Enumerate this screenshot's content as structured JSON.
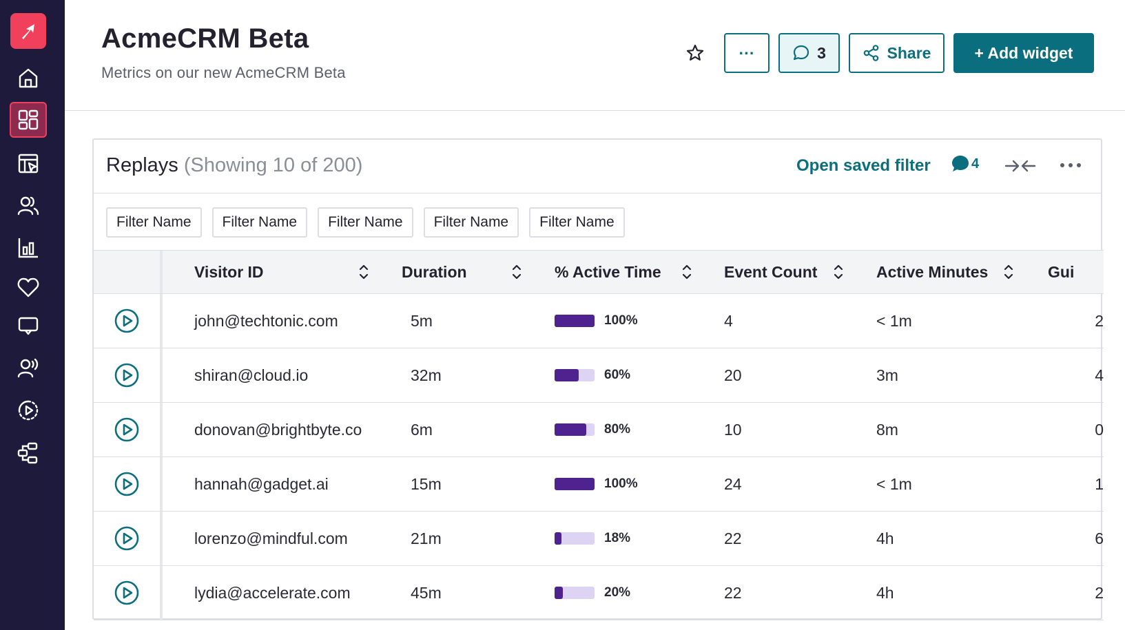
{
  "header": {
    "title": "AcmeCRM Beta",
    "subtitle": "Metrics on our new AcmeCRM Beta",
    "more_label": "···",
    "comment_count": "3",
    "share_label": "Share",
    "add_widget_label": "+ Add widget"
  },
  "sidebar": {
    "items": [
      {
        "icon": "home-icon"
      },
      {
        "icon": "dashboard-icon",
        "active": true
      },
      {
        "icon": "guides-icon"
      },
      {
        "icon": "people-icon"
      },
      {
        "icon": "analytics-icon"
      },
      {
        "icon": "heart-icon"
      },
      {
        "icon": "feedback-icon"
      },
      {
        "icon": "listen-icon"
      },
      {
        "icon": "replay-icon"
      },
      {
        "icon": "integrations-icon"
      }
    ]
  },
  "widget": {
    "title": "Replays",
    "count_text": "(Showing 10 of 200)",
    "open_saved_filter": "Open saved filter",
    "comment_count": "4",
    "filters": [
      "Filter Name",
      "Filter Name",
      "Filter Name",
      "Filter Name",
      "Filter Name"
    ],
    "columns": [
      "Visitor ID",
      "Duration",
      "% Active Time",
      "Event Count",
      "Active Minutes",
      "Gui"
    ],
    "rows": [
      {
        "visitor": "john@techtonic.com",
        "duration": "5m",
        "active_pct": 100,
        "active_label": "100%",
        "events": "4",
        "active_minutes": "< 1m",
        "guides": "2"
      },
      {
        "visitor": "shiran@cloud.io",
        "duration": "32m",
        "active_pct": 60,
        "active_label": "60%",
        "events": "20",
        "active_minutes": "3m",
        "guides": "4"
      },
      {
        "visitor": "donovan@brightbyte.co",
        "duration": "6m",
        "active_pct": 80,
        "active_label": "80%",
        "events": "10",
        "active_minutes": "8m",
        "guides": "0"
      },
      {
        "visitor": "hannah@gadget.ai",
        "duration": "15m",
        "active_pct": 100,
        "active_label": "100%",
        "events": "24",
        "active_minutes": "< 1m",
        "guides": "1"
      },
      {
        "visitor": "lorenzo@mindful.com",
        "duration": "21m",
        "active_pct": 18,
        "active_label": "18%",
        "events": "22",
        "active_minutes": "4h",
        "guides": "6"
      },
      {
        "visitor": "lydia@accelerate.com",
        "duration": "45m",
        "active_pct": 20,
        "active_label": "20%",
        "events": "22",
        "active_minutes": "4h",
        "guides": "2"
      }
    ]
  },
  "colors": {
    "sidebar_bg": "#1e1a3c",
    "brand": "#f0405c",
    "accent": "#0b6e7f",
    "bar_fill": "#4f238f",
    "bar_track": "#ddd3f3"
  }
}
